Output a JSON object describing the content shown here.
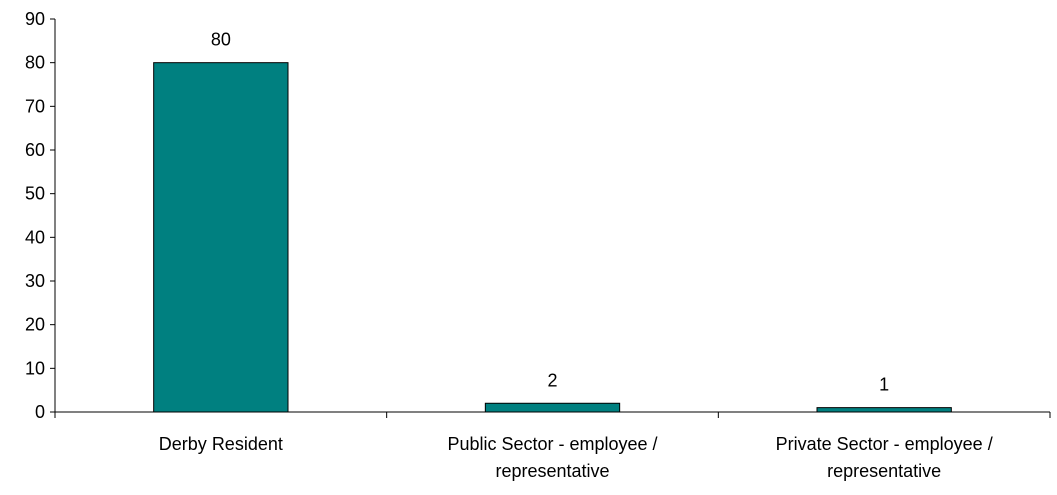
{
  "chart_data": {
    "type": "bar",
    "title": "",
    "xlabel": "",
    "ylabel": "",
    "categories": [
      [
        "Derby Resident"
      ],
      [
        "Public Sector - employee /",
        "representative"
      ],
      [
        "Private Sector - employee /",
        "representative"
      ]
    ],
    "values": [
      80,
      2,
      1
    ],
    "data_labels": [
      "80",
      "2",
      "1"
    ],
    "ylim": [
      0,
      90
    ],
    "yticks": [
      0,
      10,
      20,
      30,
      40,
      50,
      60,
      70,
      80,
      90
    ],
    "grid": false,
    "legend": "none",
    "bar_color": "#008080"
  }
}
